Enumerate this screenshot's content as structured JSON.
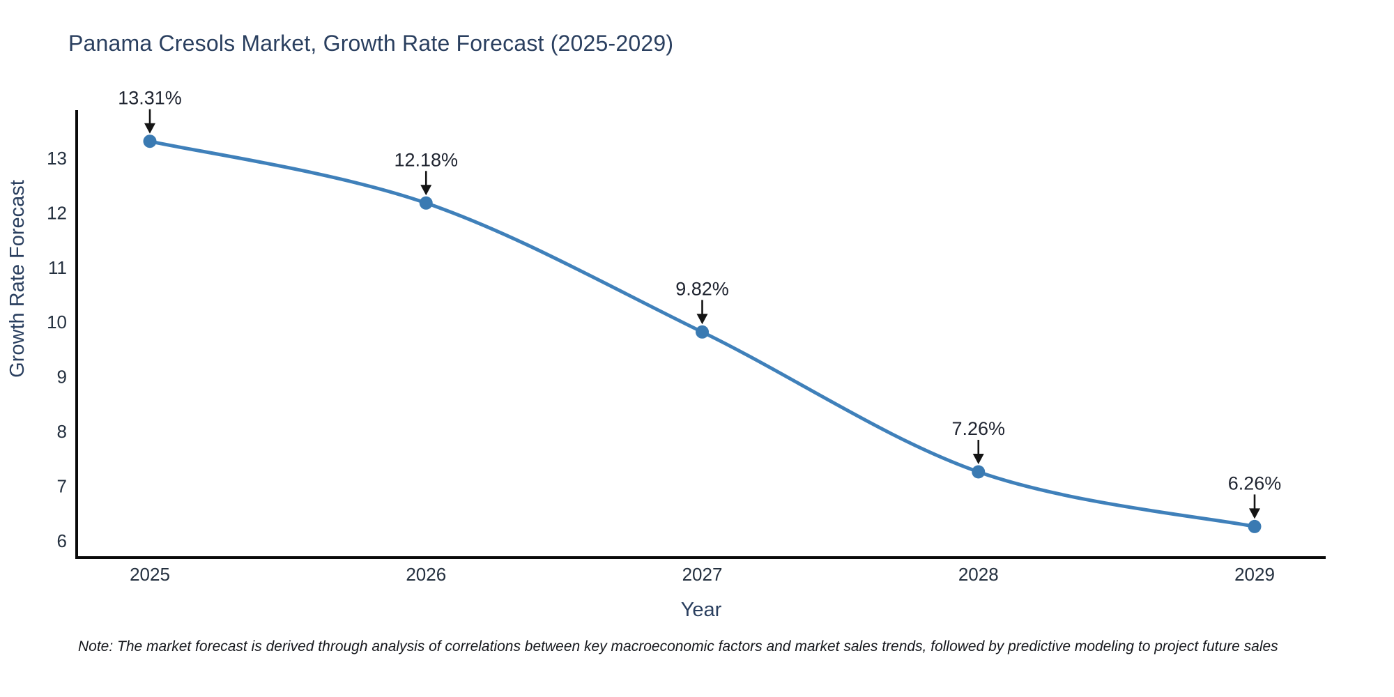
{
  "title": "Panama Cresols Market, Growth Rate Forecast (2025-2029)",
  "note": "Note: The market forecast is derived through analysis of correlations between key macroeconomic factors and market sales trends, followed by predictive modeling to project future sales",
  "chart_data": {
    "type": "line",
    "title": "Panama Cresols Market, Growth Rate Forecast (2025-2029)",
    "x": [
      2025,
      2026,
      2027,
      2028,
      2029
    ],
    "xticklabels": [
      "2025",
      "2026",
      "2027",
      "2028",
      "2029"
    ],
    "series": [
      {
        "name": "Growth Rate Forecast",
        "values": [
          13.31,
          12.18,
          9.82,
          7.26,
          6.26
        ]
      }
    ],
    "point_labels": [
      "13.31%",
      "12.18%",
      "9.82%",
      "7.26%",
      "6.26%"
    ],
    "xlabel": "Year",
    "ylabel": "Growth Rate Forecast",
    "yticks": [
      6,
      7,
      8,
      9,
      10,
      11,
      12,
      13
    ],
    "ylim": [
      5.72,
      13.85
    ],
    "grid": false,
    "legend_position": "none",
    "line_shape": "spline",
    "annotations_style": "black-arrow-down",
    "colors": {
      "line": "#3f80ba",
      "marker": "#3a7ab2",
      "title_text": "#2a3f5f",
      "tick_text": "#24303f",
      "annotation_text": "#1f2430",
      "arrow": "#141414",
      "axis_line": "#0a0a0a",
      "background": "#ffffff"
    }
  }
}
